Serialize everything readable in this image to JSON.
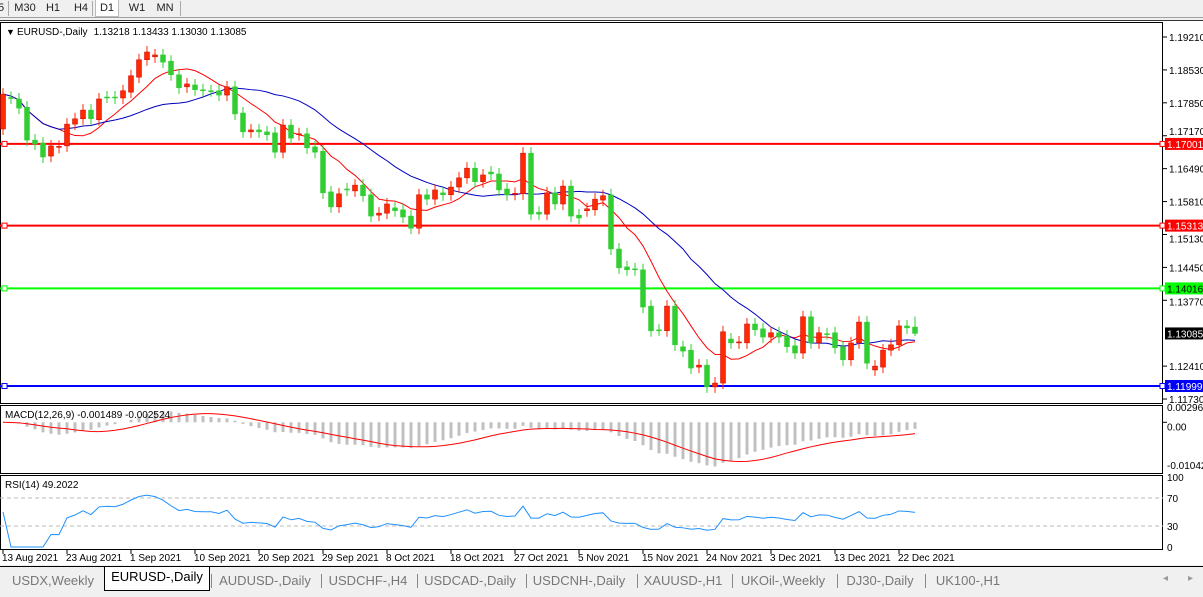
{
  "toolbar": {
    "timeframes": [
      "5",
      "M30",
      "H1",
      "H4",
      "D1",
      "W1",
      "MN"
    ],
    "active": "D1"
  },
  "chart": {
    "symbol_label": "EURUSD-,Daily",
    "ohlc_label": "1.13218 1.13433 1.13030 1.13085",
    "price_ticks": [
      "1.19210",
      "1.18530",
      "1.17850",
      "1.17170",
      "1.16490",
      "1.15810",
      "1.15130",
      "1.14450",
      "1.13770",
      "1.12410",
      "1.11730"
    ],
    "hlines": [
      {
        "price": 1.17001,
        "label": "1.17001",
        "color": "#ff0000"
      },
      {
        "price": 1.15313,
        "label": "1.15313",
        "color": "#ff0000"
      },
      {
        "price": 1.14016,
        "label": "1.14016",
        "color": "#00ff00"
      },
      {
        "price": 1.11999,
        "label": "1.11999",
        "color": "#0000ff"
      }
    ],
    "current_price": {
      "price": 1.13085,
      "label": "1.13085",
      "color": "#000000"
    },
    "bull_color": "#ff2a00",
    "bear_color": "#32cd32",
    "ma_colors": [
      "#ff0000",
      "#0000c0"
    ],
    "candles": [
      [
        1.1731,
        1.1803
      ],
      [
        1.1796,
        1.1795
      ],
      [
        1.1793,
        1.1774
      ],
      [
        1.1776,
        1.1708
      ],
      [
        1.1708,
        1.17
      ],
      [
        1.1702,
        1.1673
      ],
      [
        1.1675,
        1.1696
      ],
      [
        1.1693,
        1.1695
      ],
      [
        1.1696,
        1.1741
      ],
      [
        1.1741,
        1.1752
      ],
      [
        1.1752,
        1.177
      ],
      [
        1.177,
        1.1752
      ],
      [
        1.175,
        1.1793
      ],
      [
        1.1797,
        1.1797
      ],
      [
        1.1797,
        1.1795
      ],
      [
        1.1795,
        1.181
      ],
      [
        1.1807,
        1.1841
      ],
      [
        1.1838,
        1.1874
      ],
      [
        1.1874,
        1.189
      ],
      [
        1.188,
        1.1884
      ],
      [
        1.1884,
        1.1869
      ],
      [
        1.1871,
        1.1843
      ],
      [
        1.1843,
        1.1816
      ],
      [
        1.1818,
        1.1824
      ],
      [
        1.1822,
        1.1812
      ],
      [
        1.1812,
        1.181
      ],
      [
        1.181,
        1.181
      ],
      [
        1.181,
        1.1801
      ],
      [
        1.1801,
        1.1818
      ],
      [
        1.1818,
        1.1762
      ],
      [
        1.1764,
        1.1725
      ],
      [
        1.1725,
        1.1729
      ],
      [
        1.1729,
        1.1725
      ],
      [
        1.1725,
        1.1719
      ],
      [
        1.1723,
        1.1683
      ],
      [
        1.1683,
        1.1739
      ],
      [
        1.1739,
        1.1712
      ],
      [
        1.1719,
        1.1721
      ],
      [
        1.1721,
        1.1692
      ],
      [
        1.1694,
        1.1683
      ],
      [
        1.1685,
        1.1599
      ],
      [
        1.1601,
        1.157
      ],
      [
        1.157,
        1.1597
      ],
      [
        1.1607,
        1.1605
      ],
      [
        1.1603,
        1.1615
      ],
      [
        1.1615,
        1.1593
      ],
      [
        1.1595,
        1.1551
      ],
      [
        1.1553,
        1.1557
      ],
      [
        1.1557,
        1.1576
      ],
      [
        1.1568,
        1.1562
      ],
      [
        1.1564,
        1.1549
      ],
      [
        1.1551,
        1.1526
      ],
      [
        1.1526,
        1.1595
      ],
      [
        1.1595,
        1.1586
      ],
      [
        1.1586,
        1.1605
      ],
      [
        1.1599,
        1.1595
      ],
      [
        1.1595,
        1.1611
      ],
      [
        1.1611,
        1.163
      ],
      [
        1.163,
        1.165
      ],
      [
        1.165,
        1.1622
      ],
      [
        1.1622,
        1.1636
      ],
      [
        1.1642,
        1.1638
      ],
      [
        1.1638,
        1.1605
      ],
      [
        1.1607,
        1.1595
      ],
      [
        1.1596,
        1.1598
      ],
      [
        1.1597,
        1.1681
      ],
      [
        1.1681,
        1.1555
      ],
      [
        1.1559,
        1.1555
      ],
      [
        1.1555,
        1.1599
      ],
      [
        1.1599,
        1.1576
      ],
      [
        1.1576,
        1.1613
      ],
      [
        1.1613,
        1.1551
      ],
      [
        1.1553,
        1.1547
      ],
      [
        1.1562,
        1.1566
      ],
      [
        1.1564,
        1.1586
      ],
      [
        1.1584,
        1.1593
      ],
      [
        1.1595,
        1.1483
      ],
      [
        1.1483,
        1.1444
      ],
      [
        1.1446,
        1.144
      ],
      [
        1.1442,
        1.144
      ],
      [
        1.144,
        1.1363
      ],
      [
        1.1365,
        1.1314
      ],
      [
        1.1316,
        1.1316
      ],
      [
        1.1314,
        1.1365
      ],
      [
        1.1365,
        1.1285
      ],
      [
        1.1281,
        1.1272
      ],
      [
        1.1274,
        1.1237
      ],
      [
        1.1239,
        1.1243
      ],
      [
        1.1243,
        1.1198
      ],
      [
        1.1198,
        1.1206
      ],
      [
        1.1206,
        1.1312
      ],
      [
        1.1297,
        1.1289
      ],
      [
        1.1289,
        1.1291
      ],
      [
        1.1289,
        1.1328
      ],
      [
        1.1328,
        1.1316
      ],
      [
        1.1318,
        1.1301
      ],
      [
        1.1301,
        1.131
      ],
      [
        1.131,
        1.1301
      ],
      [
        1.1303,
        1.1281
      ],
      [
        1.1283,
        1.1268
      ],
      [
        1.1268,
        1.1343
      ],
      [
        1.1343,
        1.1289
      ],
      [
        1.1289,
        1.131
      ],
      [
        1.1308,
        1.1308
      ],
      [
        1.131,
        1.1279
      ],
      [
        1.1281,
        1.1254
      ],
      [
        1.1254,
        1.1289
      ],
      [
        1.1289,
        1.1332
      ],
      [
        1.1332,
        1.1247
      ],
      [
        1.1233,
        1.1241
      ],
      [
        1.1239,
        1.1274
      ],
      [
        1.1274,
        1.1285
      ],
      [
        1.1285,
        1.1324
      ],
      [
        1.1324,
        1.132
      ],
      [
        1.13218,
        1.13085
      ]
    ],
    "last_candle": {
      "open": 1.13218,
      "high": 1.13433,
      "low": 1.1303,
      "close": 1.13085
    }
  },
  "macd": {
    "label": "MACD(12,26,9) -0.001489 -0.002524",
    "ticks": [
      "0.002968",
      "0.00",
      "-0.01042"
    ],
    "hist_color": "#c0c0c0",
    "signal_color": "#ff0000"
  },
  "rsi": {
    "label": "RSI(14) 49.2022",
    "ticks": [
      "100",
      "70",
      "30",
      "0"
    ],
    "levels": [
      70,
      30
    ],
    "line_color": "#1e90ff"
  },
  "dates": [
    "13 Aug 2021",
    "23 Aug 2021",
    "1 Sep 2021",
    "10 Sep 2021",
    "20 Sep 2021",
    "29 Sep 2021",
    "8 Oct 2021",
    "18 Oct 2021",
    "27 Oct 2021",
    "5 Nov 2021",
    "15 Nov 2021",
    "24 Nov 2021",
    "3 Dec 2021",
    "13 Dec 2021",
    "22 Dec 2021"
  ],
  "tabs": [
    "USDX,Weekly",
    "EURUSD-,Daily",
    "AUDUSD-,Daily",
    "USDCHF-,H4",
    "USDCAD-,Daily",
    "USDCNH-,Daily",
    "XAUUSD-,H1",
    "UKOil-,Weekly",
    "DJ30-,Daily",
    "UK100-,H1"
  ],
  "active_tab": "EURUSD-,Daily"
}
